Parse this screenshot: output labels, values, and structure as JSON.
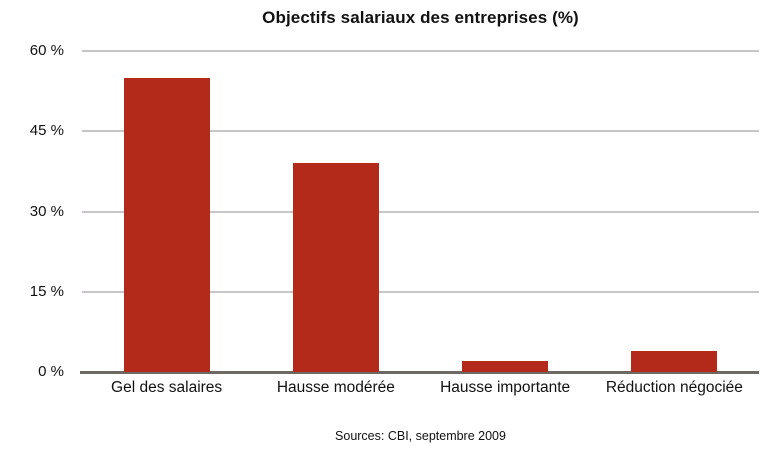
{
  "chart_data": {
    "type": "bar",
    "title": "Objectifs salariaux des entreprises (%)",
    "categories": [
      "Gel des salaires",
      "Hausse modérée",
      "Hausse importante",
      "Réduction négociée"
    ],
    "values": [
      55,
      39,
      2,
      4
    ],
    "unit": "%",
    "ylim": [
      0,
      60
    ],
    "yticks": [
      0,
      15,
      30,
      45,
      60
    ],
    "ytick_labels": [
      "0 %",
      "15 %",
      "30 %",
      "45 %",
      "60 %"
    ],
    "xlabel": "",
    "ylabel": "",
    "grid": "horizontal",
    "legend": "none",
    "source": "Sources: CBI, septembre 2009",
    "colors": {
      "bar": "#B42A1A",
      "gridline": "#C8C5C8",
      "axis": "#6E6963",
      "text": "#111111",
      "background": "#FFFFFF"
    }
  }
}
